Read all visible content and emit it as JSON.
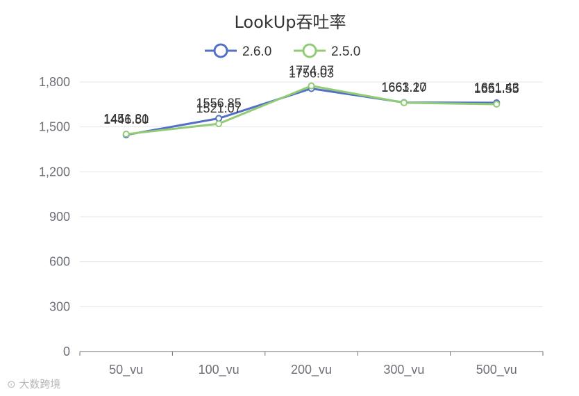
{
  "chart_data": {
    "type": "line",
    "title": "LookUp吞吐率",
    "categories": [
      "50_vu",
      "100_vu",
      "200_vu",
      "300_vu",
      "500_vu"
    ],
    "series": [
      {
        "name": "2.6.0",
        "color": "#5470c6",
        "values": [
          1446.5,
          1556.85,
          1756.03,
          1663.1,
          1661.43
        ]
      },
      {
        "name": "2.5.0",
        "color": "#91cc75",
        "values": [
          1451.81,
          1521.07,
          1774.07,
          1661.27,
          1651.55
        ]
      }
    ],
    "yticks": [
      0,
      300,
      600,
      900,
      1200,
      1500,
      1800
    ],
    "ytick_labels": [
      "0",
      "300",
      "600",
      "900",
      "1,200",
      "1,500",
      "1,800"
    ],
    "ylim": [
      0,
      1800
    ],
    "xlabel": "",
    "ylabel": "",
    "grid": true,
    "legend_position": "top-center"
  },
  "watermark": "大数跨境"
}
